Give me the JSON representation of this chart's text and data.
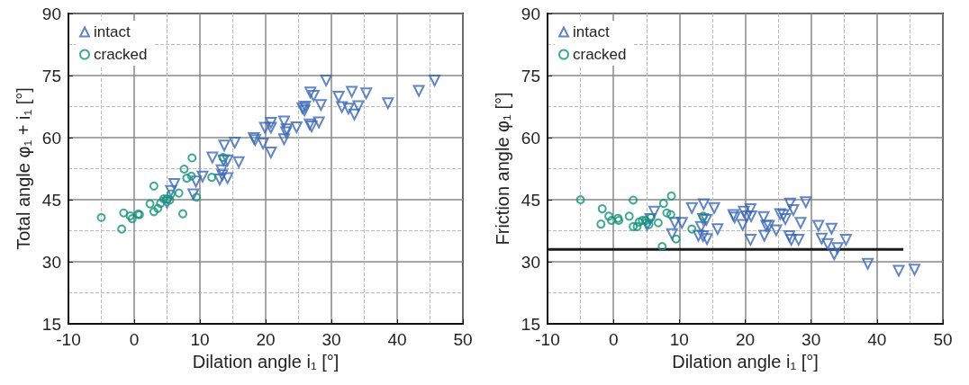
{
  "chart_data": [
    {
      "type": "scatter",
      "xlabel": "Dilation angle i₁ [°]",
      "ylabel": "Total angle φ₁ + i₁ [°]",
      "xlim": [
        -10,
        50
      ],
      "xticks": [
        -10,
        0,
        10,
        20,
        30,
        40,
        50
      ],
      "ylim": [
        15,
        90
      ],
      "yticks": [
        15,
        30,
        45,
        60,
        75,
        90
      ],
      "grid": true,
      "legend": "top left",
      "series": [
        {
          "name": "intact",
          "color": "#3a68b4",
          "marker": "triangle",
          "x": [
            29.2,
            45.7,
            43.3,
            33.1,
            35.3,
            26.8,
            27.3,
            31.1,
            28.4,
            38.6,
            31.6,
            32.6,
            34.1,
            33.5,
            25.6,
            26.0,
            25.9,
            20.8,
            22.8,
            19.9,
            20.8,
            23.2,
            24.7,
            23.1,
            26.7,
            27.0,
            28.1,
            18.2,
            18.4,
            19.6,
            20.8,
            22.8,
            13.7,
            15.3,
            11.9,
            13.6,
            14.2,
            15.9,
            13.3,
            13.4,
            13.0,
            14.2,
            10.4,
            9.4,
            6.1,
            5.6,
            9.0,
            5.0
          ],
          "values": [
            73.8,
            73.8,
            71.3,
            71.1,
            70.7,
            70.9,
            70.1,
            69.9,
            67.9,
            68.3,
            67.4,
            67.0,
            67.6,
            65.6,
            67.1,
            67.5,
            66.6,
            63.6,
            63.9,
            62.4,
            62.4,
            62.0,
            62.5,
            61.3,
            63.2,
            62.7,
            63.7,
            59.9,
            59.4,
            58.6,
            56.4,
            59.6,
            58.1,
            58.8,
            55.2,
            54.5,
            54.5,
            54.1,
            52.1,
            50.9,
            49.9,
            50.2,
            50.6,
            49.4,
            48.8,
            47.1,
            46.3,
            44.3
          ]
        },
        {
          "name": "cracked",
          "color": "#11937a",
          "marker": "circle",
          "x": [
            -5.0,
            -1.9,
            -1.6,
            -0.6,
            -0.3,
            0.6,
            0.8,
            3.0,
            2.4,
            3.0,
            3.6,
            4.0,
            4.5,
            5.0,
            5.4,
            5.6,
            6.8,
            7.4,
            7.6,
            8.0,
            8.7,
            8.8,
            9.5,
            11.8,
            13.5
          ],
          "values": [
            40.7,
            37.9,
            41.8,
            41.1,
            40.4,
            41.5,
            41.4,
            48.3,
            44.0,
            42.1,
            42.9,
            44.1,
            45.2,
            45.2,
            44.9,
            46.4,
            46.6,
            41.6,
            52.4,
            50.2,
            50.7,
            55.1,
            45.6,
            50.4,
            55.2
          ]
        }
      ]
    },
    {
      "type": "scatter",
      "xlabel": "Dilation angle i₁ [°]",
      "ylabel": "Friction angle φ₁ [°]",
      "xlim": [
        -10,
        50
      ],
      "xticks": [
        -10,
        0,
        10,
        20,
        30,
        40,
        50
      ],
      "ylim": [
        15,
        90
      ],
      "yticks": [
        15,
        30,
        45,
        60,
        75,
        90
      ],
      "grid": true,
      "legend": "top left",
      "series": [
        {
          "name": "intact",
          "color": "#3a68b4",
          "marker": "triangle",
          "x": [
            29.2,
            26.8,
            27.3,
            6.2,
            5.6,
            5.1,
            11.9,
            13.7,
            15.3,
            9.3,
            10.4,
            8.9,
            13.3,
            14.1,
            13.6,
            12.9,
            13.6,
            14.2,
            15.8,
            18.2,
            18.4,
            19.6,
            19.8,
            20.8,
            20.9,
            20.2,
            20.8,
            22.8,
            22.9,
            23.2,
            23.6,
            24.7,
            25.3,
            25.8,
            26.1,
            26.7,
            27.0,
            28.1,
            28.4,
            31.1,
            33.1,
            31.6,
            32.5,
            34.0,
            33.5,
            35.3,
            38.6,
            43.3,
            45.7
          ],
          "values": [
            44.4,
            44.1,
            42.5,
            42.1,
            40.3,
            38.9,
            43.0,
            43.9,
            43.0,
            39.4,
            39.4,
            36.7,
            38.4,
            40.1,
            40.3,
            36.3,
            36.2,
            35.5,
            37.9,
            41.3,
            40.7,
            38.9,
            42.1,
            42.7,
            41.0,
            41.0,
            35.3,
            40.8,
            36.3,
            38.7,
            38.7,
            37.6,
            41.5,
            41.3,
            40.3,
            36.2,
            35.3,
            35.3,
            39.4,
            38.7,
            38.0,
            35.6,
            34.3,
            33.3,
            31.8,
            35.3,
            29.5,
            27.8,
            28.1
          ]
        },
        {
          "name": "cracked",
          "color": "#11937a",
          "marker": "circle",
          "x": [
            -5.0,
            -1.7,
            -1.9,
            -0.7,
            -0.3,
            0.7,
            0.8,
            3.0,
            2.4,
            3.0,
            3.6,
            3.9,
            4.4,
            4.9,
            5.4,
            5.7,
            6.8,
            7.4,
            7.6,
            8.1,
            8.7,
            8.8,
            9.5,
            11.9,
            13.6
          ],
          "values": [
            45.0,
            42.8,
            39.1,
            41.0,
            40.0,
            40.5,
            40.0,
            44.9,
            41.0,
            38.5,
            38.5,
            39.6,
            40.0,
            40.0,
            39.0,
            40.7,
            39.4,
            33.7,
            44.1,
            41.8,
            41.4,
            45.9,
            35.5,
            37.9,
            41.0
          ]
        },
        {
          "type": "line",
          "color": "#1a1a1a",
          "marker": "none",
          "line_style": "solid",
          "x": [
            -10,
            44
          ],
          "values": [
            33,
            33
          ]
        }
      ]
    }
  ]
}
